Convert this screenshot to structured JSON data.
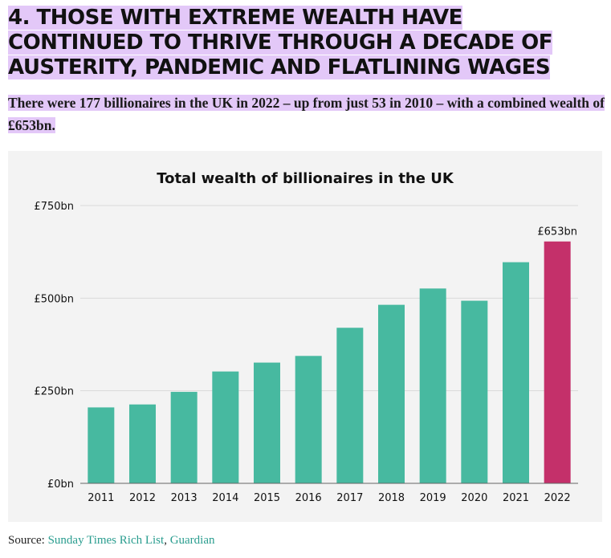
{
  "heading": "4. Those with extreme wealth have continued to thrive through a decade of austerity, pandemic and flatlining wages",
  "subheading": "There were 177 billionaires in the UK in 2022 – up from just 53 in 2010 – with a combined wealth of £653bn.",
  "source": {
    "prefix": "Source: ",
    "links": [
      "Sunday Times Rich List",
      "Guardian"
    ],
    "separator": ", "
  },
  "colors": {
    "bar": "#47b9a0",
    "highlight_bar": "#c4306a",
    "highlight_bg": "#e3c8f8",
    "panel_bg": "#f3f3f3",
    "link": "#2a9d8f"
  },
  "chart_data": {
    "type": "bar",
    "title": "Total wealth of billionaires in the UK",
    "categories": [
      "2011",
      "2012",
      "2013",
      "2014",
      "2015",
      "2016",
      "2017",
      "2018",
      "2019",
      "2020",
      "2021",
      "2022"
    ],
    "values": [
      205,
      213,
      247,
      302,
      326,
      344,
      420,
      482,
      526,
      493,
      597,
      653
    ],
    "highlight_index": 11,
    "data_labels": [
      {
        "index": 11,
        "text": "£653bn"
      }
    ],
    "y_ticks": [
      0,
      250,
      500,
      750
    ],
    "y_tick_labels": [
      "£0bn",
      "£250bn",
      "£500bn",
      "£750bn"
    ],
    "ylim": [
      0,
      750
    ],
    "grid": true,
    "xlabel": "",
    "ylabel": ""
  }
}
